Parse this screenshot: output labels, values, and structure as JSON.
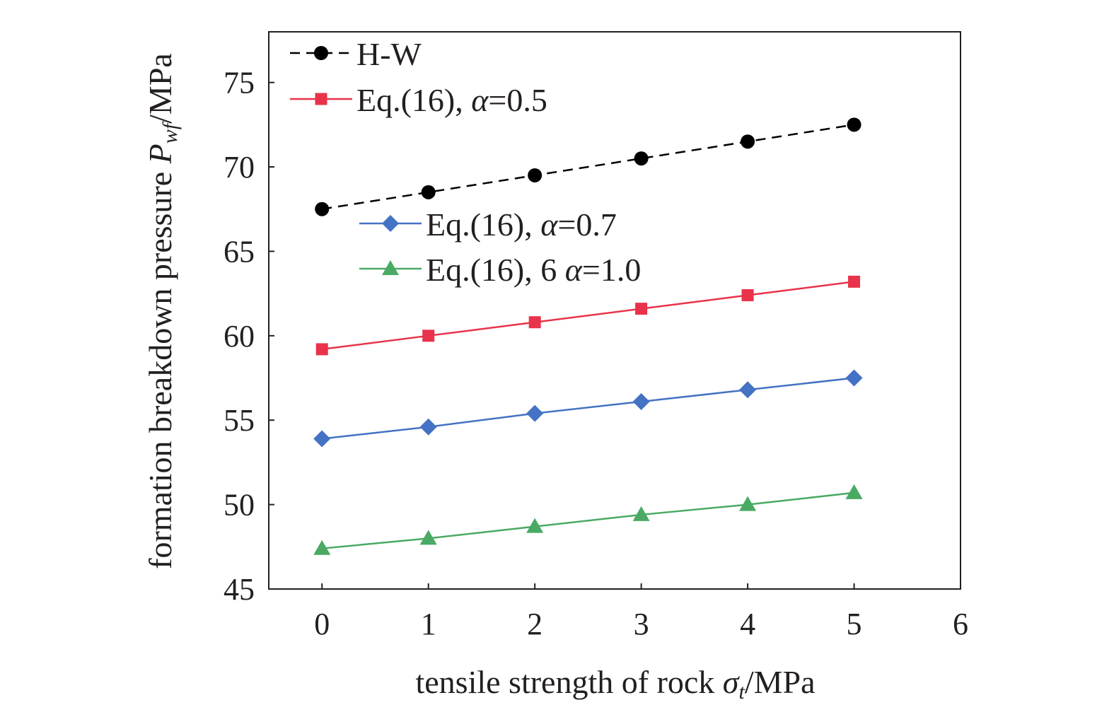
{
  "chart_data": {
    "type": "line",
    "x": [
      0,
      1,
      2,
      3,
      4,
      5
    ],
    "xlim": [
      -0.5,
      6
    ],
    "ylim": [
      45,
      78
    ],
    "xticks": [
      0,
      1,
      2,
      3,
      4,
      5,
      6
    ],
    "yticks": [
      45,
      50,
      55,
      60,
      65,
      70,
      75
    ],
    "xlabel": {
      "text": "tensile strength of rock ",
      "symbol": "σ",
      "subscript": "t",
      "unit": "/MPa"
    },
    "ylabel": {
      "text": "formation breakdown pressure ",
      "symbol": "P",
      "subscript": "wf",
      "unit": "/MPa"
    },
    "grid": false,
    "legend_placement": "top-left",
    "series": [
      {
        "name": "H-W",
        "marker": "circle",
        "dashed": true,
        "color": "#000000",
        "values": [
          67.5,
          68.5,
          69.5,
          70.5,
          71.5,
          72.5
        ]
      },
      {
        "name": "Eq.(16), α=0.5",
        "marker": "square",
        "dashed": false,
        "color": "#e8334a",
        "values": [
          59.2,
          60.0,
          60.8,
          61.6,
          62.4,
          63.2
        ]
      },
      {
        "name": "Eq.(16), α=0.7",
        "marker": "diamond",
        "dashed": false,
        "color": "#4472c4",
        "values": [
          53.9,
          54.6,
          55.4,
          56.1,
          56.8,
          57.5
        ]
      },
      {
        "name": "Eq.(16), 6 α=1.0",
        "marker": "triangle",
        "dashed": false,
        "color": "#4aaa64",
        "values": [
          47.4,
          48.0,
          48.7,
          49.4,
          50.0,
          50.7
        ]
      }
    ]
  }
}
